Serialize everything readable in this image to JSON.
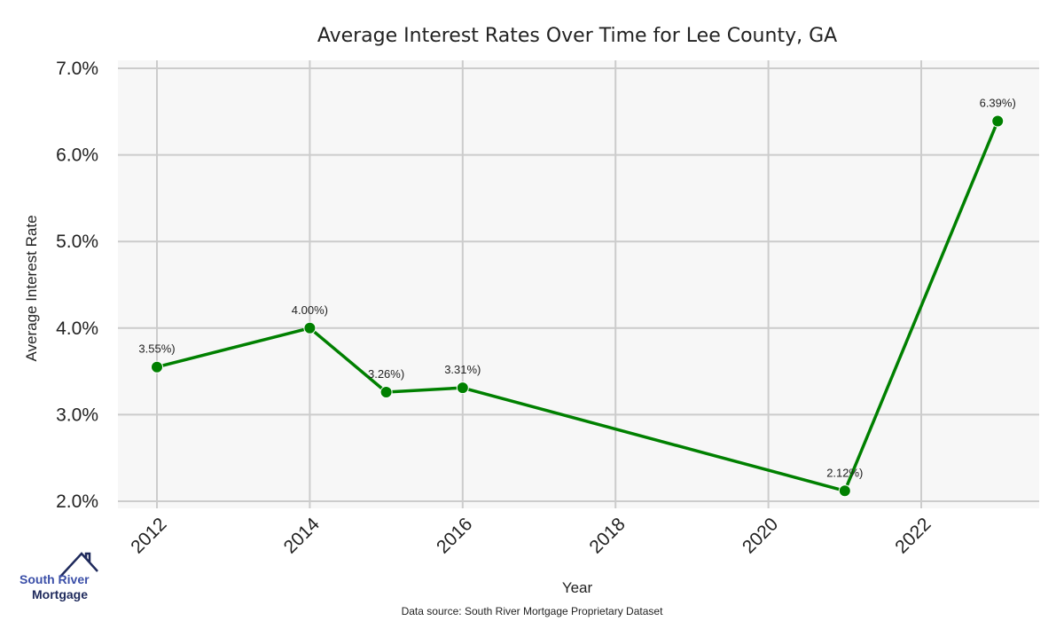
{
  "chart_data": {
    "type": "line",
    "title": "Average Interest Rates Over Time for Lee County, GA",
    "xlabel": "Year",
    "ylabel": "Average Interest Rate",
    "x": [
      2012,
      2014,
      2015,
      2016,
      2021,
      2023
    ],
    "series": [
      {
        "name": "Average Interest Rate",
        "values": [
          3.55,
          4.0,
          3.26,
          3.31,
          2.12,
          6.39
        ],
        "labels": [
          "3.55%)",
          "4.00%)",
          "3.26%)",
          "3.31%)",
          "2.12%)",
          "6.39%)"
        ],
        "color": "#008000"
      }
    ],
    "xlim": [
      2011.5,
      2023.5
    ],
    "ylim": [
      2.0,
      7.0
    ],
    "xticks": [
      2012,
      2014,
      2016,
      2018,
      2020,
      2022
    ],
    "xtick_labels": [
      "2012",
      "2014",
      "2016",
      "2018",
      "2020",
      "2022"
    ],
    "yticks": [
      2.0,
      3.0,
      4.0,
      5.0,
      6.0,
      7.0
    ],
    "ytick_labels": [
      "2.0%",
      "3.0%",
      "4.0%",
      "5.0%",
      "6.0%",
      "7.0%"
    ],
    "grid": true,
    "background": "#f7f7f7",
    "grid_color": "#cccccc"
  },
  "footer": {
    "source": "Data source: South River Mortgage Proprietary Dataset"
  },
  "logo": {
    "line1": "South River",
    "line2": "Mortgage",
    "color1": "#3b4fa8",
    "color2": "#1f2a5c"
  }
}
